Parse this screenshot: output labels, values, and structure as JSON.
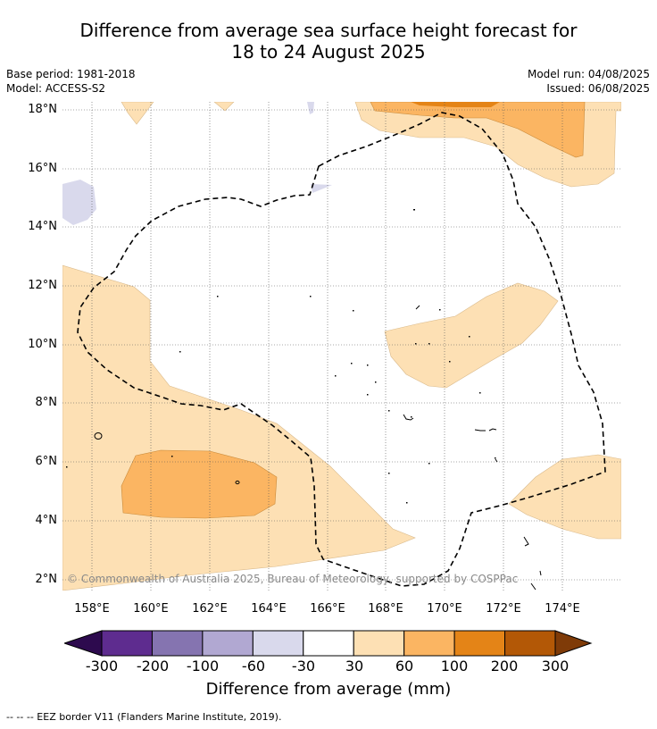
{
  "header": {
    "title_line1": "Difference from average sea surface height forecast for",
    "title_line2": "18 to 24 August 2025"
  },
  "meta": {
    "base_period": "Base period: 1981-2018",
    "model": "Model: ACCESS-S2",
    "model_run": "Model run: 04/08/2025",
    "issued": "Issued: 06/08/2025"
  },
  "map": {
    "lat_labels": [
      "18°N",
      "16°N",
      "14°N",
      "12°N",
      "10°N",
      "8°N",
      "6°N",
      "4°N",
      "2°N"
    ],
    "lon_labels": [
      "158°E",
      "160°E",
      "162°E",
      "164°E",
      "166°E",
      "168°E",
      "170°E",
      "172°E",
      "174°E"
    ],
    "copyright": "© Commonwealth of Australia 2025, Bureau of Meteorology, supported by COSPPac"
  },
  "colorbar": {
    "labels": [
      "-300",
      "-200",
      "-100",
      "-60",
      "-30",
      "30",
      "60",
      "100",
      "200",
      "300"
    ],
    "colors": [
      "#2d0a4e",
      "#5e2c8f",
      "#8574b0",
      "#b1a8d2",
      "#d9d9ec",
      "#ffffff",
      "#fde0b4",
      "#fbb562",
      "#e48417",
      "#b35806",
      "#7f3b08"
    ],
    "title": "Difference from average (mm)"
  },
  "footnote": "--  --  -- EEZ border V11 (Flanders Marine Institute, 2019)."
}
